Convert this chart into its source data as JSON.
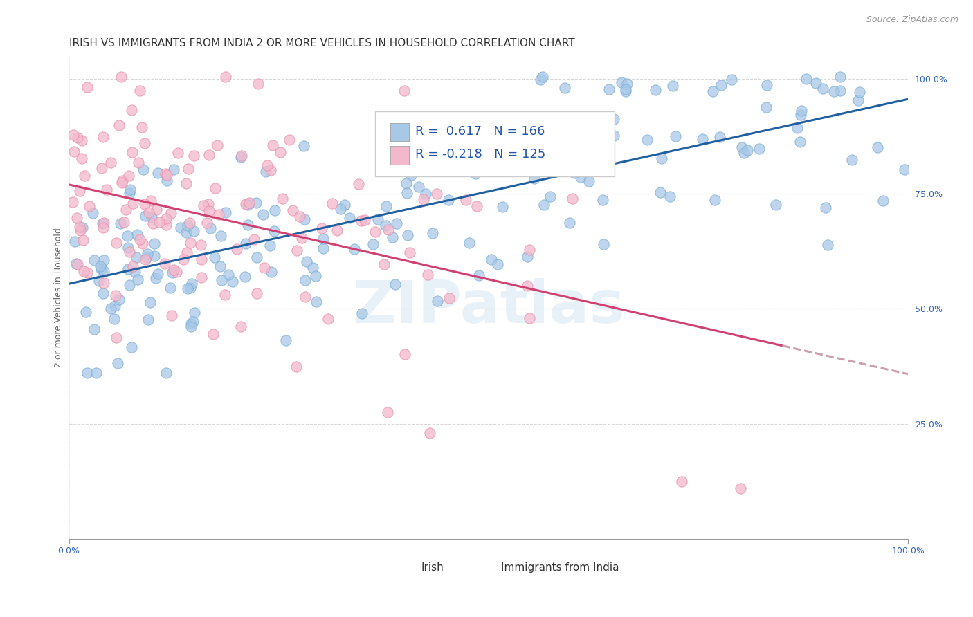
{
  "title": "IRISH VS IMMIGRANTS FROM INDIA 2 OR MORE VEHICLES IN HOUSEHOLD CORRELATION CHART",
  "source": "Source: ZipAtlas.com",
  "ylabel": "2 or more Vehicles in Household",
  "xlim": [
    0.0,
    1.0
  ],
  "ylim": [
    0.0,
    1.05
  ],
  "ytick_labels": [
    "25.0%",
    "50.0%",
    "75.0%",
    "100.0%"
  ],
  "ytick_values": [
    0.25,
    0.5,
    0.75,
    1.0
  ],
  "legend_label1": "Irish",
  "legend_label2": "Immigrants from India",
  "R1": 0.617,
  "N1": 166,
  "R2": -0.218,
  "N2": 125,
  "blue_color": "#a8c8e8",
  "blue_edge_color": "#7bafd4",
  "pink_color": "#f4b8cc",
  "pink_edge_color": "#e890aa",
  "blue_line_color": "#2060a0",
  "pink_line_color": "#d04070",
  "pink_dash_color": "#c8a0b0",
  "title_fontsize": 11,
  "source_fontsize": 9,
  "axis_label_fontsize": 9,
  "tick_fontsize": 9,
  "legend_fontsize": 13,
  "watermark": "ZIPatlas",
  "background_color": "#ffffff",
  "seed": 99,
  "blue_intercept": 0.555,
  "blue_slope": 0.335,
  "pink_intercept": 0.735,
  "pink_slope": -0.24
}
